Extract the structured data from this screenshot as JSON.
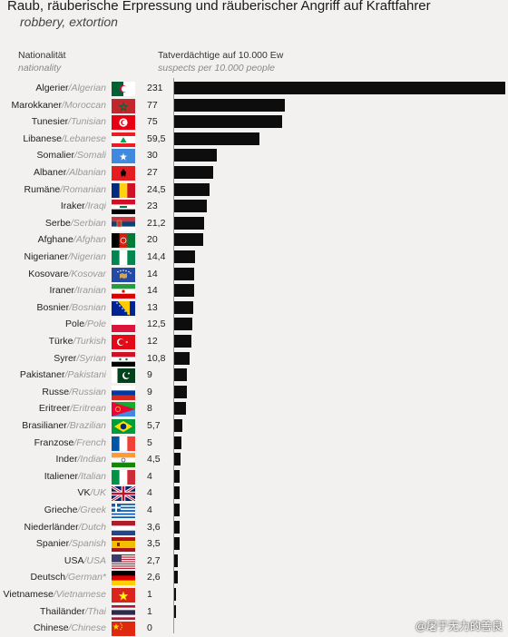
{
  "title": "Raub, räuberische Erpressung und räuberischer Angriff auf Kraftfahrer",
  "subtitle": "robbery, extortion",
  "header": {
    "nat_de": "Nationalität",
    "nat_en": "nationality",
    "val_de": "Tatverdächtige auf 10.000 Ew",
    "val_en": "suspects per 10.000 people"
  },
  "watermark": "@屠于无力的善良",
  "chart_data": {
    "type": "bar",
    "orientation": "horizontal",
    "title": "Raub, räuberische Erpressung und räuberischer Angriff auf Kraftfahrer",
    "subtitle": "robbery, extortion",
    "ylabel": "Nationalität / nationality",
    "xlabel": "Tatverdächtige auf 10.000 Ew / suspects per 10.000 people",
    "xlim": [
      0,
      231
    ],
    "grid": false,
    "bar_color": "#0d0d0d",
    "rows": [
      {
        "de": "Algerier",
        "en": "Algerian",
        "label": "231",
        "value": 231,
        "flag": "algeria-flag"
      },
      {
        "de": "Marokkaner",
        "en": "Moroccan",
        "label": "77",
        "value": 77,
        "flag": "morocco-flag"
      },
      {
        "de": "Tunesier",
        "en": "Tunisian",
        "label": "75",
        "value": 75,
        "flag": "tunisia-flag"
      },
      {
        "de": "Libanese",
        "en": "Lebanese",
        "label": "59,5",
        "value": 59.5,
        "flag": "lebanon-flag"
      },
      {
        "de": "Somalier",
        "en": "Somali",
        "label": "30",
        "value": 30,
        "flag": "somalia-flag"
      },
      {
        "de": "Albaner",
        "en": "Albanian",
        "label": "27",
        "value": 27,
        "flag": "albania-flag"
      },
      {
        "de": "Rumäne",
        "en": "Romanian",
        "label": "24,5",
        "value": 24.5,
        "flag": "romania-flag"
      },
      {
        "de": "Iraker",
        "en": "Iraqi",
        "label": "23",
        "value": 23,
        "flag": "iraq-flag"
      },
      {
        "de": "Serbe",
        "en": "Serbian",
        "label": "21,2",
        "value": 21.2,
        "flag": "serbia-flag"
      },
      {
        "de": "Afghane",
        "en": "Afghan",
        "label": "20",
        "value": 20,
        "flag": "afghanistan-flag"
      },
      {
        "de": "Nigerianer",
        "en": "Nigerian",
        "label": "14,4",
        "value": 14.4,
        "flag": "nigeria-flag"
      },
      {
        "de": "Kosovare",
        "en": "Kosovar",
        "label": "14",
        "value": 14,
        "flag": "kosovo-flag"
      },
      {
        "de": "Iraner",
        "en": "Iranian",
        "label": "14",
        "value": 14,
        "flag": "iran-flag"
      },
      {
        "de": "Bosnier",
        "en": "Bosnian",
        "label": "13",
        "value": 13,
        "flag": "bosnia-flag"
      },
      {
        "de": "Pole",
        "en": "Pole",
        "label": "12,5",
        "value": 12.5,
        "flag": "poland-flag"
      },
      {
        "de": "Türke",
        "en": "Turkish",
        "label": "12",
        "value": 12,
        "flag": "turkey-flag"
      },
      {
        "de": "Syrer",
        "en": "Syrian",
        "label": "10,8",
        "value": 10.8,
        "flag": "syria-flag"
      },
      {
        "de": "Pakistaner",
        "en": "Pakistani",
        "label": "9",
        "value": 9,
        "flag": "pakistan-flag"
      },
      {
        "de": "Russe",
        "en": "Russian",
        "label": "9",
        "value": 9,
        "flag": "russia-flag"
      },
      {
        "de": "Eritreer",
        "en": "Eritrean",
        "label": "8",
        "value": 8,
        "flag": "eritrea-flag"
      },
      {
        "de": "Brasilianer",
        "en": "Brazilian",
        "label": "5,7",
        "value": 5.7,
        "flag": "brazil-flag"
      },
      {
        "de": "Franzose",
        "en": "French",
        "label": "5",
        "value": 5,
        "flag": "france-flag"
      },
      {
        "de": "Inder",
        "en": "Indian",
        "label": "4,5",
        "value": 4.5,
        "flag": "india-flag"
      },
      {
        "de": "Italiener",
        "en": "Italian",
        "label": "4",
        "value": 4,
        "flag": "italy-flag"
      },
      {
        "de": "VK",
        "en": "UK",
        "label": "4",
        "value": 4,
        "flag": "uk-flag"
      },
      {
        "de": "Grieche",
        "en": "Greek",
        "label": "4",
        "value": 4,
        "flag": "greece-flag"
      },
      {
        "de": "Niederländer",
        "en": "Dutch",
        "label": "3,6",
        "value": 3.6,
        "flag": "netherlands-flag"
      },
      {
        "de": "Spanier",
        "en": "Spanish",
        "label": "3,5",
        "value": 3.5,
        "flag": "spain-flag"
      },
      {
        "de": "USA",
        "en": "USA",
        "label": "2,7",
        "value": 2.7,
        "flag": "usa-flag"
      },
      {
        "de": "Deutsch",
        "en": "German*",
        "label": "2,6",
        "value": 2.6,
        "flag": "germany-flag"
      },
      {
        "de": "Vietnamese",
        "en": "Vietnamese",
        "label": "1",
        "value": 1,
        "flag": "vietnam-flag"
      },
      {
        "de": "Thailänder",
        "en": "Thai",
        "label": "1",
        "value": 1,
        "flag": "thailand-flag"
      },
      {
        "de": "Chinese",
        "en": "Chinese",
        "label": "0",
        "value": 0,
        "flag": "china-flag"
      }
    ]
  }
}
